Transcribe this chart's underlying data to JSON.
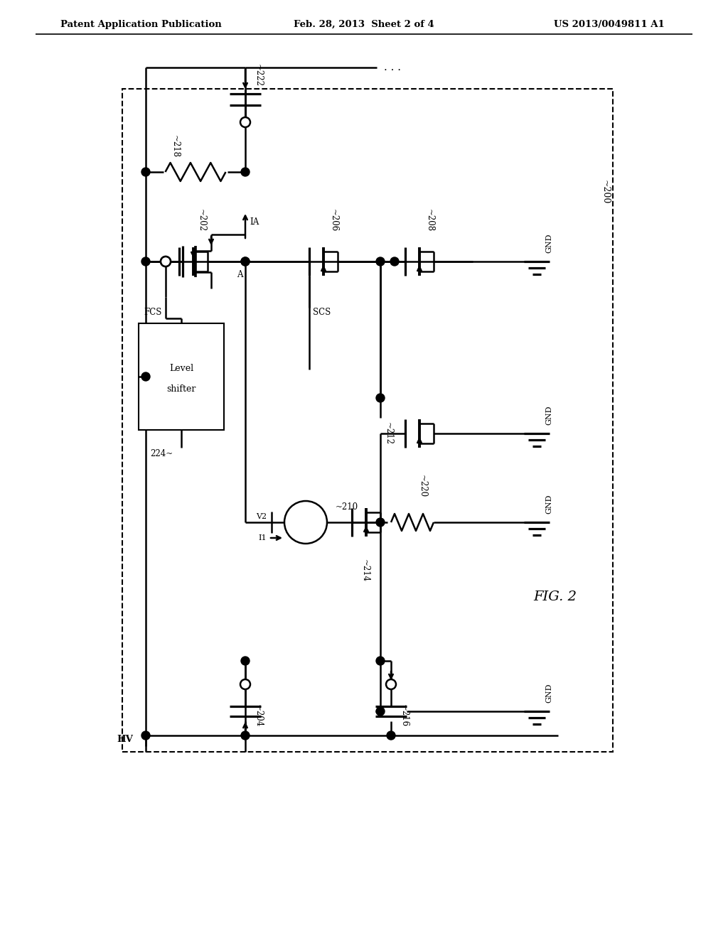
{
  "title_left": "Patent Application Publication",
  "title_mid": "Feb. 28, 2013  Sheet 2 of 4",
  "title_right": "US 2013/0049811 A1",
  "background": "#ffffff",
  "line_color": "#000000",
  "lw": 1.8,
  "fig_label": "FIG. 2"
}
